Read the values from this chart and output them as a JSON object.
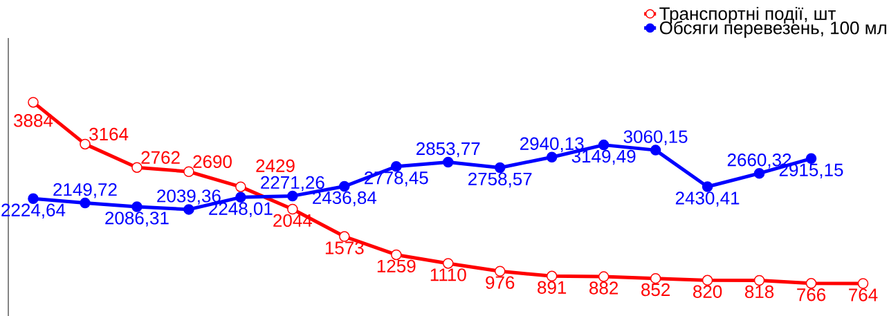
{
  "chart_data": {
    "type": "line",
    "categories": [
      null,
      null,
      null,
      null,
      null,
      null,
      null,
      null,
      null,
      null,
      null,
      null,
      null,
      null,
      null,
      null,
      null
    ],
    "series": [
      {
        "name": "Транспортні події, шт",
        "color": "#ff0000",
        "values": [
          3884,
          3164,
          2762,
          2690,
          2429,
          2044,
          1573,
          1259,
          1110,
          976,
          891,
          882,
          852,
          820,
          818,
          766,
          764
        ],
        "value_labels": [
          "3884",
          "3164",
          "2762",
          "2690",
          "2429",
          "2044",
          "1573",
          "1259",
          "1110",
          "976",
          "891",
          "882",
          "852",
          "820",
          "818",
          "766",
          "764"
        ]
      },
      {
        "name": "Обсяги перевезень, 100 мл",
        "color": "#0000ff",
        "values": [
          2224.64,
          2149.72,
          2086.31,
          2039.36,
          2248.01,
          2271.26,
          2436.84,
          2778.45,
          2853.77,
          2758.57,
          2940.13,
          3149.49,
          3060.15,
          2430.41,
          2660.32,
          2915.15,
          null
        ],
        "value_labels": [
          "2224,64",
          "2149,72",
          "2086,31",
          "2039,36",
          "2248,01",
          "2271,26",
          "2436,84",
          "2778,45",
          "2853,77",
          "2758,57",
          "2940,13",
          "3149,49",
          "3060,15",
          "2430,41",
          "2660,32",
          "2915,15",
          null
        ]
      }
    ],
    "ylim": [
      205,
      4990
    ],
    "legend": "top right",
    "marker": "circle",
    "line_style": "solid"
  }
}
